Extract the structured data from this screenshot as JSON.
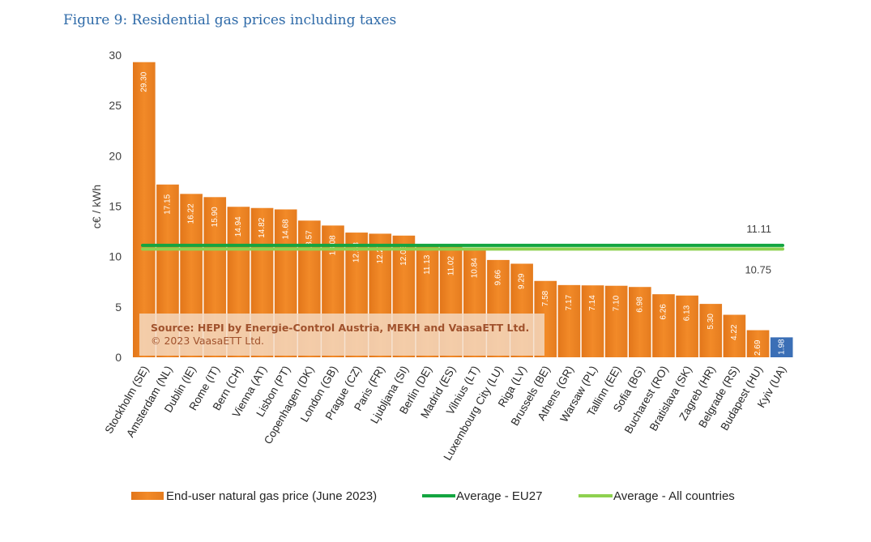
{
  "figure_title": "Figure 9: Residential gas prices including taxes",
  "source_note": {
    "line1": "Source: HEPI by Energie-Control Austria, MEKH and VaasaETT Ltd.",
    "line2": "© 2023 VaasaETT Ltd."
  },
  "colors": {
    "bar": "#f28a28",
    "bar_highlight": "#3b6fb6",
    "avg_eu27": "#13a540",
    "avg_all": "#8ed14f",
    "source_bg": "#f4dcc6"
  },
  "chart_data": {
    "type": "bar",
    "ylabel": "c€ / kWh",
    "xlabel": "",
    "ylim": [
      0,
      30
    ],
    "yticks": [
      0,
      5,
      10,
      15,
      20,
      25,
      30
    ],
    "grid": false,
    "legend_position": "bottom",
    "categories": [
      "Stockholm (SE)",
      "Amsterdam (NL)",
      "Dublin (IE)",
      "Rome (IT)",
      "Bern (CH)",
      "Vienna (AT)",
      "Lisbon (PT)",
      "Copenhagen (DK)",
      "London (GB)",
      "Prague (CZ)",
      "Paris (FR)",
      "Ljubljana (SI)",
      "Berlin (DE)",
      "Madrid (ES)",
      "Vilnius (LT)",
      "Luxembourg City (LU)",
      "Riga (LV)",
      "Brussels (BE)",
      "Athens (GR)",
      "Warsaw (PL)",
      "Tallinn (EE)",
      "Sofia (BG)",
      "Bucharest (RO)",
      "Bratislava (SK)",
      "Zagreb (HR)",
      "Belgrade (RS)",
      "Budapest (HU)",
      "Kyiv (UA)"
    ],
    "series": [
      {
        "name": "End-user natural gas price (June 2023)",
        "values": [
          29.3,
          17.15,
          16.22,
          15.9,
          14.94,
          14.82,
          14.68,
          13.57,
          13.08,
          12.38,
          12.27,
          12.08,
          11.13,
          11.02,
          10.84,
          9.66,
          9.29,
          7.58,
          7.17,
          7.14,
          7.1,
          6.98,
          6.26,
          6.13,
          5.3,
          4.22,
          2.69,
          1.98
        ],
        "labels": [
          "29.30",
          "17.15",
          "16.22",
          "15.90",
          "14.94",
          "14.82",
          "14.68",
          "13.57",
          "13.08",
          "12.38",
          "12.27",
          "12.08",
          "11.13",
          "11.02",
          "10.84",
          "9.66",
          "9.29",
          "7.58",
          "7.17",
          "7.14",
          "7.10",
          "6.98",
          "6.26",
          "6.13",
          "5.30",
          "4.22",
          "2.69",
          "1.98"
        ],
        "highlight_index": 27
      }
    ],
    "averages": [
      {
        "name": "Average - EU27",
        "value": 11.11,
        "label": "11.11"
      },
      {
        "name": "Average - All countries",
        "value": 10.75,
        "label": "10.75"
      }
    ]
  }
}
